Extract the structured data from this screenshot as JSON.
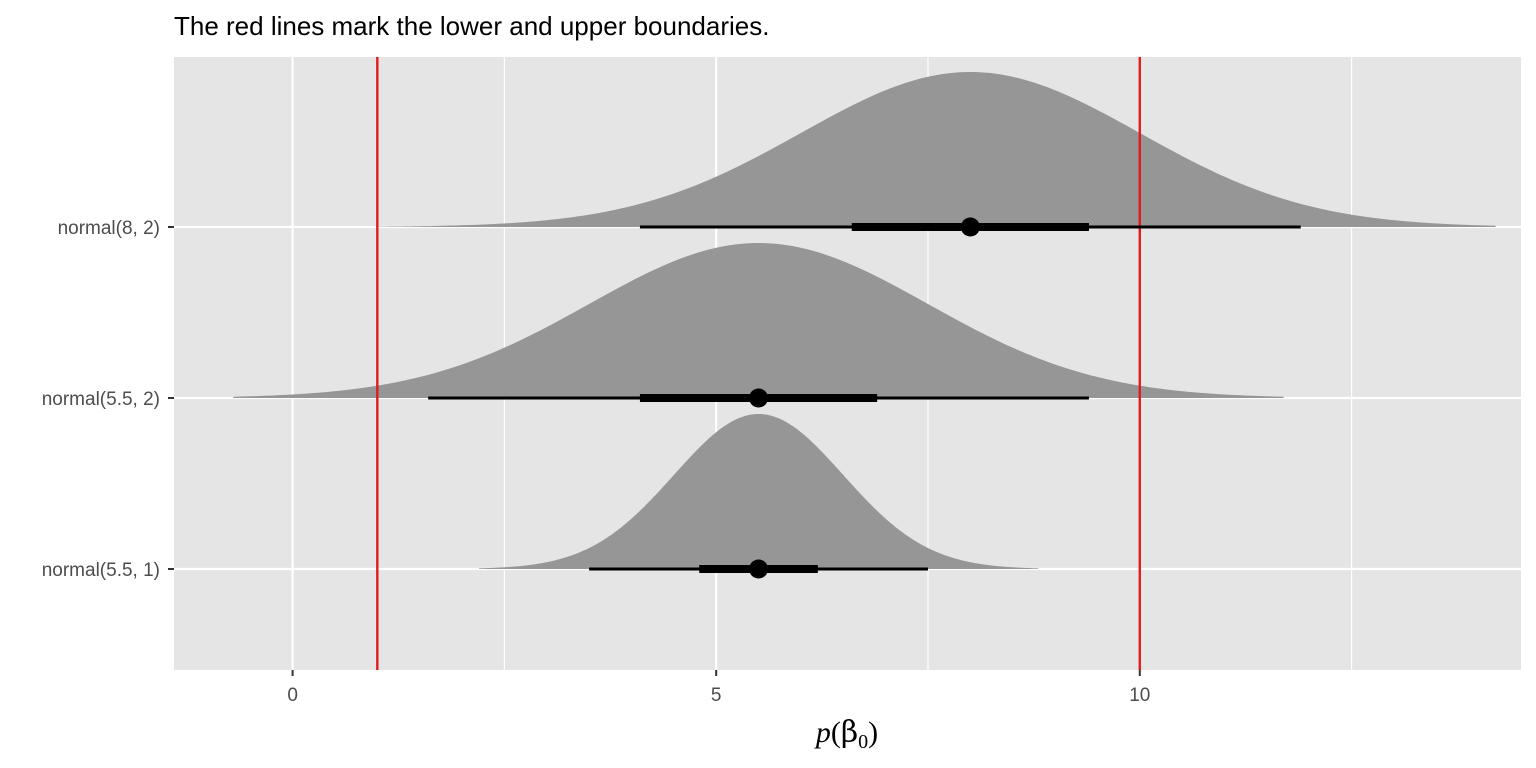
{
  "chart_data": {
    "type": "halfeye",
    "subtitle": "The red lines mark the lower and upper boundaries.",
    "xlabel": {
      "prefix": "p",
      "symbol": "β",
      "subscript": "0"
    },
    "ylabel": "",
    "xlim": [
      -1.4,
      14.5
    ],
    "x_ticks": [
      0,
      5,
      10
    ],
    "x_tick_labels": [
      "0",
      "5",
      "10"
    ],
    "x_minor_gridlines": [
      2.5,
      7.5,
      12.5
    ],
    "grid": true,
    "reference_lines": [
      1,
      10
    ],
    "reference_line_color": "#e31a1c",
    "density_fill_color": "#969696",
    "panel_background": "#e5e5e5",
    "series": [
      {
        "label": "normal(8, 2)",
        "mean": 8,
        "sd": 2,
        "point": 8,
        "interval_66": [
          6.6,
          9.4
        ],
        "interval_95": [
          4.1,
          11.9
        ],
        "density_range": [
          1.0,
          14.2
        ]
      },
      {
        "label": "normal(5.5, 2)",
        "mean": 5.5,
        "sd": 2,
        "point": 5.5,
        "interval_66": [
          4.1,
          6.9
        ],
        "interval_95": [
          1.6,
          9.4
        ],
        "density_range": [
          -0.7,
          11.7
        ]
      },
      {
        "label": "normal(5.5, 1)",
        "mean": 5.5,
        "sd": 1,
        "point": 5.5,
        "interval_66": [
          4.8,
          6.2
        ],
        "interval_95": [
          3.5,
          7.5
        ],
        "density_range": [
          2.2,
          8.8
        ]
      }
    ]
  }
}
